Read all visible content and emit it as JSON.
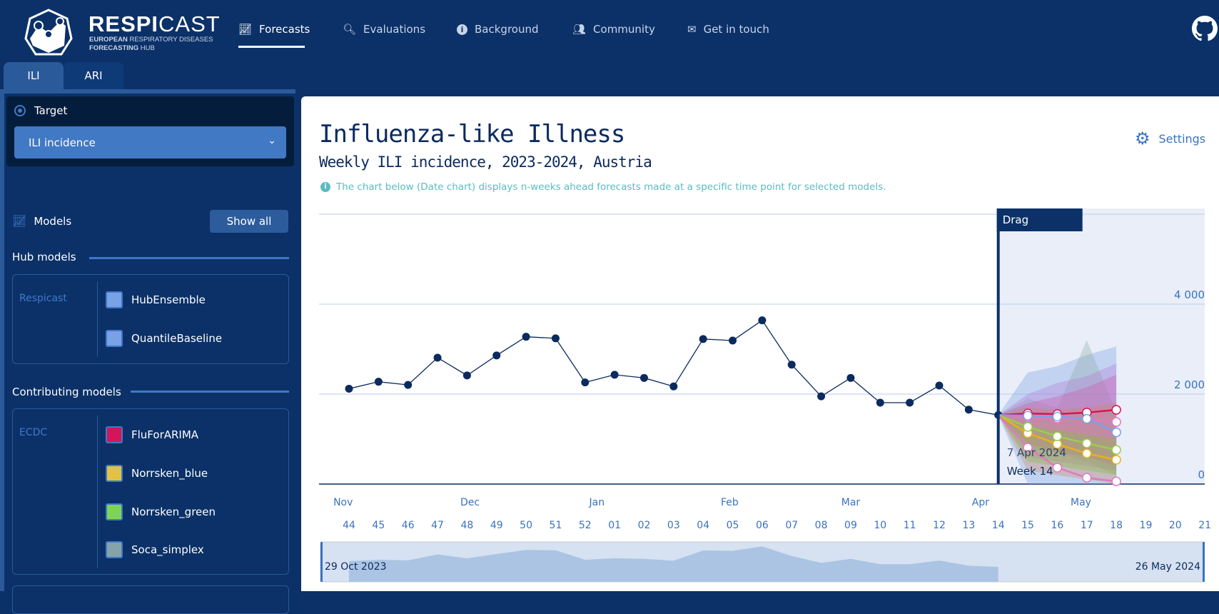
{
  "brand": {
    "name_bold": "RESPI",
    "name_light": "CAST",
    "sub_line1_bold": "EUROPEAN",
    "sub_line1": " RESPIRATORY DISEASES",
    "sub_line2_bold": "FORECASTING",
    "sub_line2": " HUB"
  },
  "nav": [
    {
      "label": "Forecasts",
      "icon": "chart-line-icon"
    },
    {
      "label": "Evaluations",
      "icon": "search-chart-icon"
    },
    {
      "label": "Background",
      "icon": "info-icon"
    },
    {
      "label": "Community",
      "icon": "users-icon"
    },
    {
      "label": "Get in touch",
      "icon": "envelope-icon"
    }
  ],
  "tabs": [
    {
      "label": "ILI"
    },
    {
      "label": "ARI"
    }
  ],
  "sidebar": {
    "target_label": "Target",
    "target_value": "ILI incidence",
    "models_label": "Models",
    "show_all": "Show all",
    "hub_title": "Hub models",
    "hub_group": "Respicast",
    "hub_models": [
      {
        "name": "HubEnsemble",
        "color": "#7aa0e6"
      },
      {
        "name": "QuantileBaseline",
        "color": "#7aa0e6"
      }
    ],
    "contrib_title": "Contributing models",
    "contrib_group": "ECDC",
    "contrib_models": [
      {
        "name": "FluForARIMA",
        "color": "#d6145a"
      },
      {
        "name": "Norrsken_blue",
        "color": "#e0c244"
      },
      {
        "name": "Norrsken_green",
        "color": "#80d455"
      },
      {
        "name": "Soca_simplex",
        "color": "#86a4a8"
      }
    ]
  },
  "main": {
    "title": "Influenza-like Illness",
    "subtitle": "Weekly ILI incidence, 2023-2024, Austria",
    "info": "The chart below (Date chart) displays n-weeks ahead forecasts made at a specific time point for selected models.",
    "settings": "Settings"
  },
  "chart_data": {
    "type": "line",
    "title": "Weekly ILI incidence, 2023-2024, Austria",
    "weeks": [
      "44",
      "45",
      "46",
      "47",
      "48",
      "49",
      "50",
      "51",
      "52",
      "01",
      "02",
      "03",
      "04",
      "05",
      "06",
      "07",
      "08",
      "09",
      "10",
      "11",
      "12",
      "13",
      "14",
      "15",
      "16",
      "17",
      "18",
      "19",
      "20",
      "21"
    ],
    "months": [
      {
        "label": "Nov",
        "pos": -0.2
      },
      {
        "label": "Dec",
        "pos": 4.1
      },
      {
        "label": "Jan",
        "pos": 8.4
      },
      {
        "label": "Feb",
        "pos": 12.9
      },
      {
        "label": "Mar",
        "pos": 17.0
      },
      {
        "label": "Apr",
        "pos": 21.4
      },
      {
        "label": "May",
        "pos": 24.8
      }
    ],
    "yticks": [
      {
        "v": 0,
        "label": "0"
      },
      {
        "v": 2000,
        "label": "2 000"
      },
      {
        "v": 4000,
        "label": "4 000"
      },
      {
        "v": 6000,
        "label": ""
      }
    ],
    "ylim": [
      0,
      6000
    ],
    "observed": [
      2120,
      2275,
      2205,
      2810,
      2415,
      2860,
      3275,
      3240,
      2260,
      2430,
      2360,
      2170,
      3225,
      3190,
      3640,
      2655,
      1950,
      2360,
      1810,
      1810,
      2190,
      1655,
      1535
    ],
    "forecast_origin_index": 22,
    "drag_label": "Drag",
    "origin_date": "7 Apr 2024",
    "origin_week": "Week 14",
    "bands": [
      {
        "color": "#7aa0e6",
        "upper": [
          2480,
          2620,
          2870,
          3060
        ],
        "lower": [
          0,
          0,
          0,
          0
        ]
      },
      {
        "color": "#8fa9a8",
        "upper": [
          1900,
          1700,
          3200,
          1600
        ],
        "lower": [
          800,
          700,
          500,
          200
        ]
      },
      {
        "color": "#b57ad8",
        "upper": [
          2000,
          2250,
          2400,
          2680
        ],
        "lower": [
          600,
          500,
          400,
          300
        ]
      },
      {
        "color": "#d05aa8",
        "upper": [
          1800,
          1950,
          2150,
          2430
        ],
        "lower": [
          900,
          700,
          600,
          400
        ]
      },
      {
        "color": "#d08a60",
        "upper": [
          1700,
          1650,
          1700,
          1800
        ],
        "lower": [
          300,
          200,
          100,
          0
        ]
      },
      {
        "color": "#80c040",
        "upper": [
          1300,
          1200,
          1100,
          1000
        ],
        "lower": [
          500,
          400,
          300,
          200
        ]
      }
    ],
    "forecasts": [
      {
        "name": "FluForARIMA",
        "color": "#d6145a",
        "values": [
          1570,
          1555,
          1590,
          1650
        ]
      },
      {
        "name": "HubEnsemble",
        "color": "#e377c2",
        "values": [
          1490,
          1460,
          1445,
          1380
        ]
      },
      {
        "name": "QuantileBaseline",
        "color": "#7aa0e6",
        "values": [
          1520,
          1500,
          1450,
          1150
        ]
      },
      {
        "name": "Norrsken_blue",
        "color": "#e8b020",
        "values": [
          1130,
          890,
          680,
          540
        ]
      },
      {
        "name": "Norrsken_green",
        "color": "#9ccc50",
        "values": [
          1270,
          1060,
          905,
          760
        ]
      },
      {
        "name": "Soca_simplex",
        "color": "#e377c2",
        "values": [
          810,
          365,
          140,
          60
        ]
      }
    ],
    "brush": {
      "start_label": "29 Oct 2023",
      "end_label": "26  May 2024"
    }
  }
}
